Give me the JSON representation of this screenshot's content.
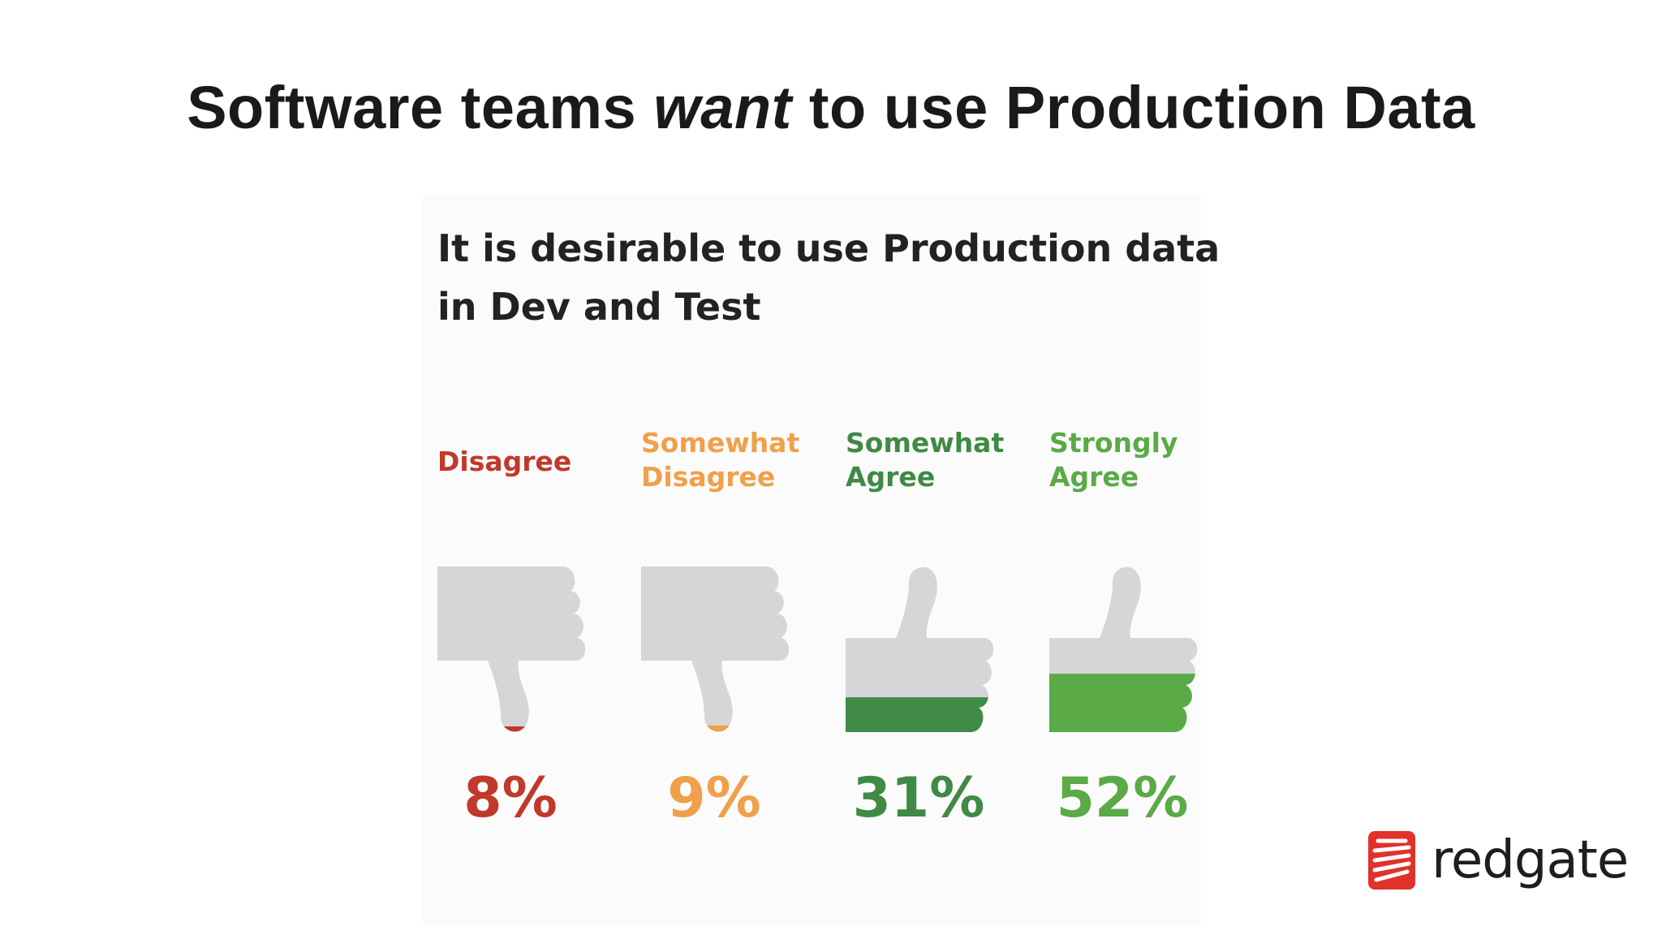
{
  "slide": {
    "title_before": "Software teams ",
    "title_emphasis": "want",
    "title_after": " to use Production Data"
  },
  "chart_data": {
    "type": "bar",
    "title_lines": [
      "It is desirable to use Production data",
      "in Dev and Test"
    ],
    "categories": [
      "Disagree",
      "Somewhat Disagree",
      "Somewhat Agree",
      "Strongly Agree"
    ],
    "category_label_lines": [
      [
        "Disagree"
      ],
      [
        "Somewhat",
        "Disagree"
      ],
      [
        "Somewhat",
        "Agree"
      ],
      [
        "Strongly",
        "Agree"
      ]
    ],
    "values": [
      8,
      9,
      31,
      52
    ],
    "value_labels": [
      "8%",
      "9%",
      "31%",
      "52%"
    ],
    "unit": "%",
    "icons": [
      "thumbs-down-icon",
      "thumbs-down-icon",
      "thumbs-up-icon",
      "thumbs-up-icon"
    ],
    "colors": [
      "#c0392b",
      "#f0a04a",
      "#3f8a45",
      "#5aaa47"
    ],
    "icon_base_color": "#d6d6d8",
    "fill_level": [
      0.08,
      0.09,
      0.31,
      0.52
    ]
  },
  "logo": {
    "text": "redgate",
    "icon": "redgate-logo-icon",
    "color": "#e0322b"
  }
}
